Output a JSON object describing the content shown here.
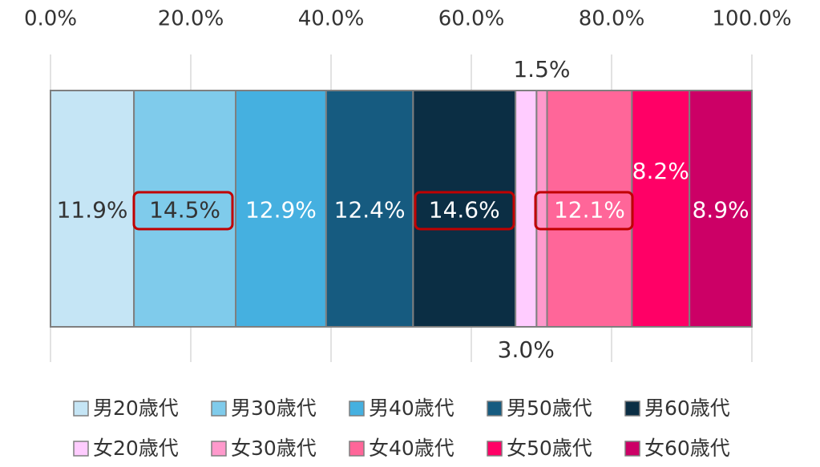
{
  "chart_data": {
    "type": "stacked_bar",
    "orientation": "horizontal",
    "categories": [
      null
    ],
    "series": [
      {
        "name": "男20歳代",
        "color": "#c5e5f5",
        "values": [
          11.9
        ],
        "value_labels": [
          "11.9%"
        ]
      },
      {
        "name": "男30歳代",
        "color": "#7fcbeb",
        "values": [
          14.5
        ],
        "value_labels": [
          "14.5%"
        ]
      },
      {
        "name": "男40歳代",
        "color": "#45b0e0",
        "values": [
          12.9
        ],
        "value_labels": [
          "12.9%"
        ]
      },
      {
        "name": "男50歳代",
        "color": "#165b80",
        "values": [
          12.4
        ],
        "value_labels": [
          "12.4%"
        ]
      },
      {
        "name": "男60歳代",
        "color": "#0b2e44",
        "values": [
          14.6
        ],
        "value_labels": [
          "14.6%"
        ]
      },
      {
        "name": "女20歳代",
        "color": "#ffccff",
        "values": [
          3.0
        ],
        "value_labels": [
          "3.0%"
        ]
      },
      {
        "name": "女30歳代",
        "color": "#ff99cc",
        "values": [
          1.5
        ],
        "value_labels": [
          "1.5%"
        ]
      },
      {
        "name": "女40歳代",
        "color": "#ff6699",
        "values": [
          12.1
        ],
        "value_labels": [
          "12.1%"
        ]
      },
      {
        "name": "女50歳代",
        "color": "#ff0066",
        "values": [
          8.2
        ],
        "value_labels": [
          "8.2%"
        ]
      },
      {
        "name": "女60歳代",
        "color": "#cc0066",
        "values": [
          8.9
        ],
        "value_labels": [
          "8.9%"
        ]
      }
    ],
    "xlim": [
      0,
      100
    ],
    "xticks": [
      {
        "value": 0,
        "label": "0.0%"
      },
      {
        "value": 20,
        "label": "20.0%"
      },
      {
        "value": 40,
        "label": "40.0%"
      },
      {
        "value": 60,
        "label": "60.0%"
      },
      {
        "value": 80,
        "label": "80.0%"
      },
      {
        "value": 100,
        "label": "100.0%"
      }
    ],
    "grid": true
  }
}
